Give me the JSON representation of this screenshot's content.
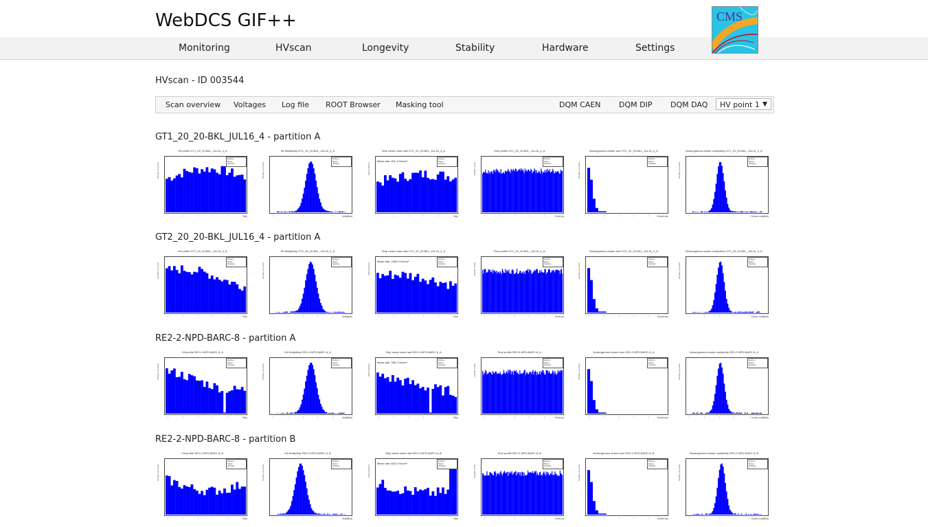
{
  "header": {
    "title": "WebDCS GIF++",
    "logo_text": "CMS",
    "logo_colors": {
      "bg": "#27c4e6",
      "track1": "#f5a623",
      "track2": "#d0021b",
      "arc": "#e8e8e8"
    }
  },
  "nav": {
    "items": [
      "Monitoring",
      "HVscan",
      "Longevity",
      "Stability",
      "Hardware",
      "Settings"
    ]
  },
  "page": {
    "heading": "HVscan - ID 003544"
  },
  "toolbar": {
    "left": [
      "Scan overview",
      "Voltages",
      "Log file",
      "ROOT Browser",
      "Masking tool"
    ],
    "right": [
      "DQM CAEN",
      "DQM DIP",
      "DQM DAQ"
    ],
    "select_value": "HV point 1",
    "select_caret": "▼"
  },
  "colors": {
    "bar": "#0000ff",
    "frame": "#444444"
  },
  "stats_labels": [
    "Entries",
    "Mean",
    "Std Dev"
  ],
  "sections": [
    {
      "title": "GT1_20_20-BKL_JUL16_4 - partition A",
      "plots": [
        {
          "kind": "hit",
          "title": "Hit profile GT1_20_20-BKL_JUL16_4_A",
          "ylabel": "Number of events",
          "xlabel": "Strip"
        },
        {
          "kind": "gauss",
          "title": "Hit Multiplicity GT1_20_20-BKL_JUL16_4_A",
          "ylabel": "Number of events",
          "xlabel": "Multiplicity"
        },
        {
          "kind": "strip",
          "title": "Strip mean noise rate GT1_20_20-BKL_JUL16_4_A",
          "mean_rate": "Mean rate: 201.4 Hz/cm²",
          "ylabel": "Rate (Hz/cm²)",
          "xlabel": "Strip"
        },
        {
          "kind": "time",
          "title": "Time profile GT1_20_20-BKL_JUL16_4_A",
          "ylabel": "Number of hits",
          "xlabel": "Time (ns)"
        },
        {
          "kind": "cluster",
          "title": "Noise/gamma cluster size GT1_20_20-BKL_JUL16_4_A",
          "ylabel": "Number of events",
          "xlabel": "Cluster size"
        },
        {
          "kind": "clustermult",
          "title": "Noise/gamma cluster multiplicity GT1_20_20-BKL_JUL16_4_A",
          "ylabel": "Number of events",
          "xlabel": "Cluster multiplicity"
        }
      ]
    },
    {
      "title": "GT2_20_20-BKL_JUL16_4 - partition A",
      "plots": [
        {
          "kind": "hit",
          "title": "Hit profile GT2_20_20-BKL_JUL16_4_A",
          "ylabel": "Number of events",
          "xlabel": "Strip"
        },
        {
          "kind": "gauss",
          "title": "Hit Multiplicity GT2_20_20-BKL_JUL16_4_A",
          "ylabel": "Number of events",
          "xlabel": "Multiplicity"
        },
        {
          "kind": "strip",
          "title": "Strip mean noise rate GT2_20_20-BKL_JUL16_4_A",
          "mean_rate": "Mean rate: 1082.9 Hz/cm²",
          "ylabel": "Rate (Hz/cm²)",
          "xlabel": "Strip"
        },
        {
          "kind": "time",
          "title": "Time profile GT2_20_20-BKL_JUL16_4_A",
          "ylabel": "Number of hits",
          "xlabel": "Time (ns)"
        },
        {
          "kind": "cluster",
          "title": "Noise/gamma cluster size GT2_20_20-BKL_JUL16_4_A",
          "ylabel": "Number of events",
          "xlabel": "Cluster size"
        },
        {
          "kind": "clustermult",
          "title": "Noise/gamma cluster multiplicity GT2_20_20-BKL_JUL16_4_A",
          "ylabel": "Number of events",
          "xlabel": "Cluster multiplicity"
        }
      ]
    },
    {
      "title": "RE2-2-NPD-BARC-8 - partition A",
      "plots": [
        {
          "kind": "hit",
          "title": "Hit profile RE2-2-NPD-BARC-8_A",
          "ylabel": "Number of events",
          "xlabel": "Strip"
        },
        {
          "kind": "gauss",
          "title": "Hit Multiplicity RE2-2-NPD-BARC-8_A",
          "ylabel": "Number of events",
          "xlabel": "Multiplicity"
        },
        {
          "kind": "strip",
          "title": "Strip mean noise rate RE2-2-NPD-BARC-8_A",
          "mean_rate": "Mean rate: 786.1 Hz/cm²",
          "ylabel": "Rate (Hz/cm²)",
          "xlabel": "Strip"
        },
        {
          "kind": "time",
          "title": "Time profile RE2-2-NPD-BARC-8_A",
          "ylabel": "Number of hits",
          "xlabel": "Time (ns)"
        },
        {
          "kind": "cluster",
          "title": "Noise/gamma cluster size RE2-2-NPD-BARC-8_A",
          "ylabel": "Number of events",
          "xlabel": "Cluster size"
        },
        {
          "kind": "clustermult",
          "title": "Noise/gamma cluster multiplicity RE2-2-NPD-BARC-8_A",
          "ylabel": "Number of events",
          "xlabel": "Cluster multiplicity"
        }
      ]
    },
    {
      "title": "RE2-2-NPD-BARC-8 - partition B",
      "plots": [
        {
          "kind": "hit",
          "title": "Hit profile RE2-2-NPD-BARC-8_B",
          "ylabel": "Number of events",
          "xlabel": "Strip"
        },
        {
          "kind": "gauss",
          "title": "Hit Multiplicity RE2-2-NPD-BARC-8_B",
          "ylabel": "Number of events",
          "xlabel": "Multiplicity"
        },
        {
          "kind": "strip",
          "title": "Strip mean noise rate RE2-2-NPD-BARC-8_B",
          "mean_rate": "Mean rate: 463.2 Hz/cm²",
          "ylabel": "Rate (Hz/cm²)",
          "xlabel": "Strip"
        },
        {
          "kind": "time",
          "title": "Time profile RE2-2-NPD-BARC-8_B",
          "ylabel": "Number of hits",
          "xlabel": "Time (ns)"
        },
        {
          "kind": "cluster",
          "title": "Noise/gamma cluster size RE2-2-NPD-BARC-8_B",
          "ylabel": "Number of events",
          "xlabel": "Cluster size"
        },
        {
          "kind": "clustermult",
          "title": "Noise/gamma cluster multiplicity RE2-2-NPD-BARC-8_B",
          "ylabel": "Number of events",
          "xlabel": "Cluster multiplicity"
        }
      ]
    }
  ]
}
